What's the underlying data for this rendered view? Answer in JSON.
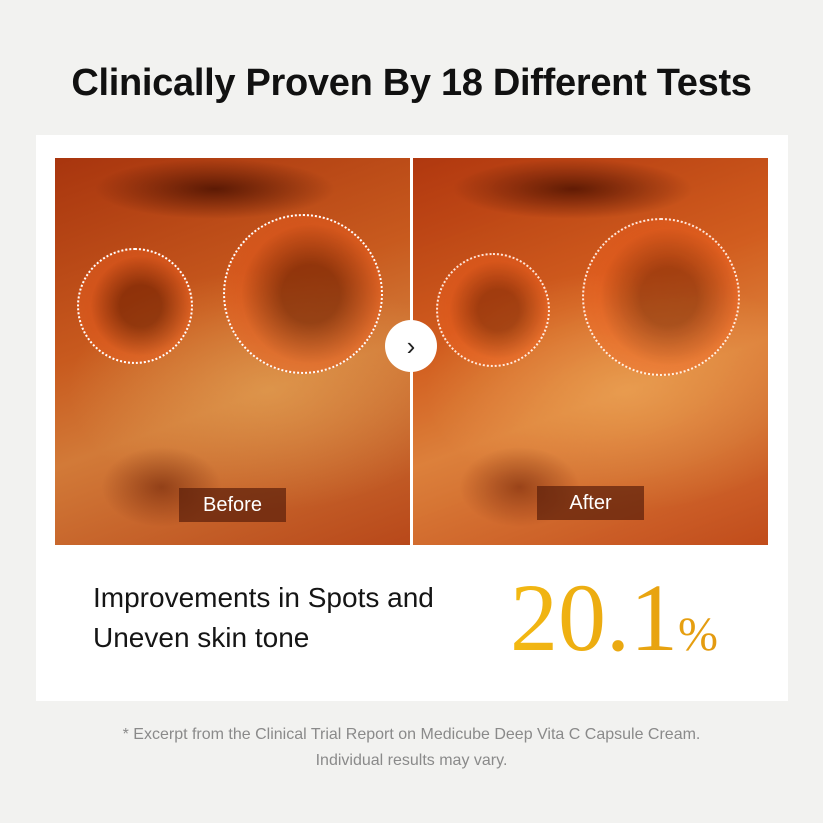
{
  "title": "Clinically Proven By 18 Different Tests",
  "comparison": {
    "before_label": "Before",
    "after_label": "After",
    "arrow_icon": "chevron-right-icon"
  },
  "result": {
    "description_line1": "Improvements in Spots and",
    "description_line2": "Uneven skin tone",
    "value": "20.1",
    "unit": "%"
  },
  "footnote": {
    "line1": "* Excerpt from the Clinical Trial Report on Medicube Deep Vita C Capsule Cream.",
    "line2": "Individual results may vary."
  },
  "colors": {
    "accent": "#f0b010",
    "background": "#f2f2f0"
  }
}
